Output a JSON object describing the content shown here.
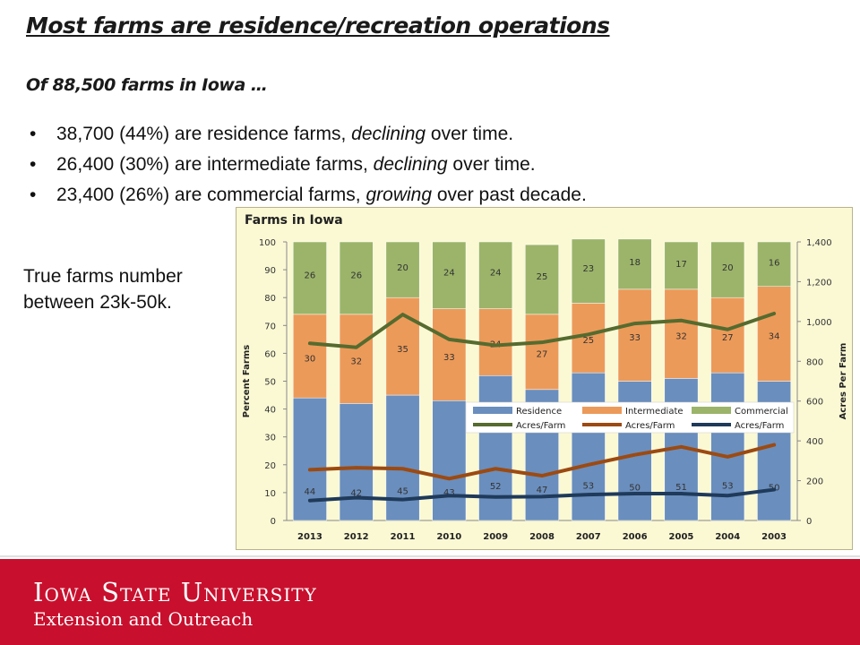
{
  "slide": {
    "title": "Most farms are residence/recreation operations",
    "subtitle": "Of 88,500 farms in Iowa …",
    "bullets": [
      {
        "pre": "38,700 (44%) are residence farms, ",
        "em": "declining",
        "post": " over time."
      },
      {
        "pre": "26,400 (30%) are intermediate farms, ",
        "em": "declining",
        "post": " over time."
      },
      {
        "pre": "23,400 (26%) are commercial farms, ",
        "em": "growing",
        "post": " over past decade."
      }
    ],
    "side_note_line1": "True farms number",
    "side_note_line2": "between 23k-50k."
  },
  "footer": {
    "university": "Iowa State University",
    "unit": "Extension and Outreach"
  },
  "chart_data": {
    "type": "bar",
    "stacked": true,
    "title": "Farms in Iowa",
    "categories": [
      "2013",
      "2012",
      "2011",
      "2010",
      "2009",
      "2008",
      "2007",
      "2006",
      "2005",
      "2004",
      "2003"
    ],
    "ylabel": "Percent Farms",
    "ylim": [
      0,
      100
    ],
    "yticks": [
      "0",
      "10",
      "20",
      "30",
      "40",
      "50",
      "60",
      "70",
      "80",
      "90",
      "100"
    ],
    "y2label": "Acres Per Farm",
    "y2lim": [
      0,
      1400
    ],
    "y2ticks": [
      "0",
      "200",
      "400",
      "600",
      "800",
      "1,000",
      "1,200",
      "1,400"
    ],
    "grid": false,
    "legend_position": "inside-center",
    "series": [
      {
        "name": "Residence",
        "kind": "bar",
        "color": "#6a8ebd",
        "values": [
          44,
          42,
          45,
          43,
          52,
          47,
          53,
          50,
          51,
          53,
          50
        ]
      },
      {
        "name": "Intermediate",
        "kind": "bar",
        "color": "#ec9a59",
        "values": [
          30,
          32,
          35,
          33,
          24,
          27,
          25,
          33,
          32,
          27,
          34
        ]
      },
      {
        "name": "Commercial",
        "kind": "bar",
        "color": "#9bb46a",
        "values": [
          26,
          26,
          20,
          24,
          24,
          25,
          23,
          18,
          17,
          20,
          16
        ]
      },
      {
        "name": "Acres/Farm",
        "kind": "line",
        "axis": "right",
        "color": "#556b2f",
        "values": [
          890,
          870,
          1035,
          910,
          880,
          895,
          935,
          990,
          1005,
          960,
          1040
        ]
      },
      {
        "name": "Acres/Farm",
        "kind": "line",
        "axis": "right",
        "color": "#9c4a12",
        "values": [
          255,
          265,
          260,
          210,
          260,
          225,
          280,
          330,
          370,
          320,
          380
        ]
      },
      {
        "name": "Acres/Farm",
        "kind": "line",
        "axis": "right",
        "color": "#1f3a5a",
        "values": [
          100,
          115,
          105,
          125,
          118,
          120,
          130,
          135,
          135,
          125,
          155
        ]
      }
    ]
  }
}
